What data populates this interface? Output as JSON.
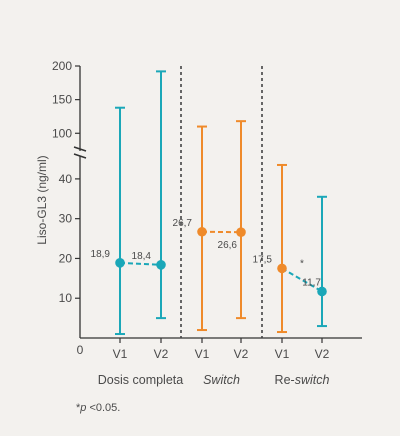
{
  "chart_data": {
    "type": "scatter",
    "ylabel": "Liso-GL3 (ng/ml)",
    "y_axis_break": true,
    "ylim_lower": [
      0,
      45
    ],
    "ylim_upper": [
      90,
      200
    ],
    "y_ticks_lower": [
      "0",
      "10",
      "20",
      "30",
      "40"
    ],
    "y_ticks_upper": [
      "100",
      "150",
      "200"
    ],
    "x_ticks": [
      "V1",
      "V2",
      "V1",
      "V2",
      "V1",
      "V2"
    ],
    "groups": [
      {
        "label": "Dosis completa",
        "label_style": "normal"
      },
      {
        "label": "Switch",
        "label_style": "italic"
      },
      {
        "label": "Re-switch",
        "label_style": "mixed",
        "label_prefix": "Re-",
        "label_suffix": "switch"
      }
    ],
    "series": [
      {
        "group": 0,
        "color": "#1aa7b8",
        "points": [
          {
            "x": "V1",
            "mean": 18.9,
            "low": 1.0,
            "high": 138,
            "label": "18,9"
          },
          {
            "x": "V2",
            "mean": 18.4,
            "low": 5.0,
            "high": 192,
            "label": "18,4"
          }
        ]
      },
      {
        "group": 1,
        "color": "#ef8a2a",
        "points": [
          {
            "x": "V1",
            "mean": 26.7,
            "low": 2.0,
            "high": 110,
            "label": "26,7"
          },
          {
            "x": "V2",
            "mean": 26.6,
            "low": 5.0,
            "high": 118,
            "label": "26,6"
          }
        ]
      },
      {
        "group": 2,
        "color": "#ef8a2a",
        "second_color": "#1aa7b8",
        "points": [
          {
            "x": "V1",
            "mean": 17.5,
            "low": 1.5,
            "high": 43.5,
            "label": "17,5",
            "color": "#ef8a2a"
          },
          {
            "x": "V2",
            "mean": 11.7,
            "low": 3.0,
            "high": 35.5,
            "label": "11,7",
            "color": "#1aa7b8"
          }
        ],
        "annotation": "*"
      }
    ],
    "grid": false,
    "legend": "none"
  },
  "footnote": {
    "star": "*",
    "p": "p",
    "rest": " <0.05."
  }
}
